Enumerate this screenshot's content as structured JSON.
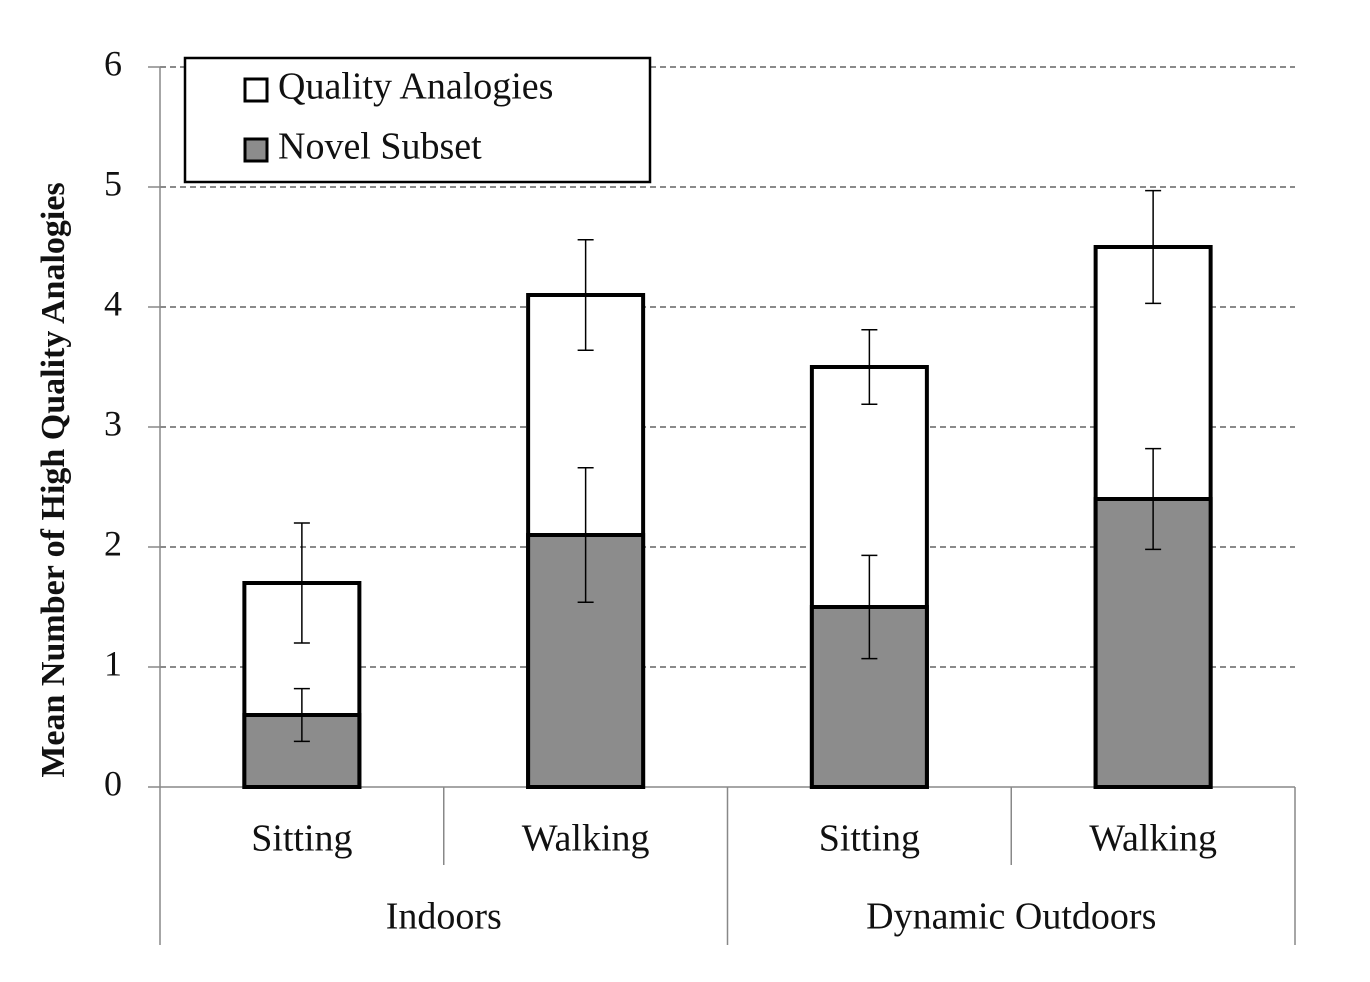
{
  "chart_data": {
    "type": "bar",
    "overlap": true,
    "ylabel": "Mean Number of High Quality Analogies",
    "categories": [
      "Sitting",
      "Walking",
      "Sitting",
      "Walking"
    ],
    "groups": [
      "Indoors",
      "Dynamic Outdoors"
    ],
    "series": [
      {
        "name": "Quality Analogies",
        "color": "#ffffff",
        "values": [
          1.7,
          4.1,
          3.5,
          4.5
        ],
        "errors": [
          0.5,
          0.46,
          0.31,
          0.47
        ]
      },
      {
        "name": "Novel Subset",
        "color": "#8c8c8c",
        "values": [
          0.6,
          2.1,
          1.5,
          2.4
        ],
        "errors": [
          0.22,
          0.56,
          0.43,
          0.42
        ]
      }
    ],
    "ylim": [
      0,
      6
    ],
    "yticks": [
      0,
      1,
      2,
      3,
      4,
      5,
      6
    ],
    "grid": true,
    "legend": "upper left"
  }
}
